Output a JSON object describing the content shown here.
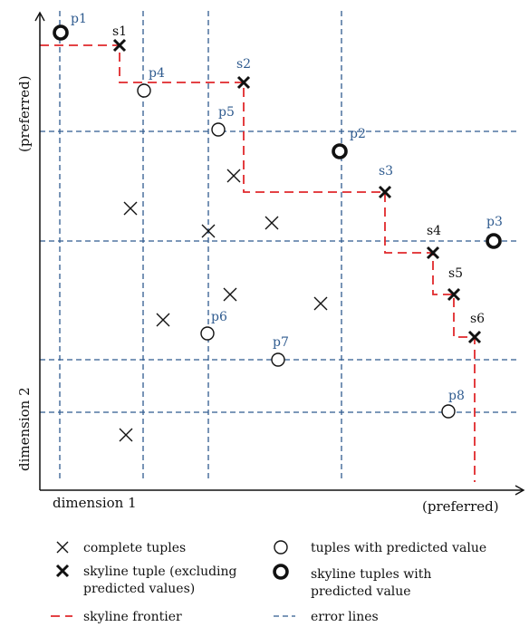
{
  "colors": {
    "axis": "#111111",
    "error_line": "#2f5b8f",
    "frontier": "#e0282b",
    "point_label": "#2f5b8f",
    "skyline_label": "#111111"
  },
  "axes": {
    "x_label": "dimension 1",
    "x_preferred": "(preferred)",
    "y_label": "dimension 2",
    "y_preferred": "(preferred)"
  },
  "points": [
    {
      "id": "p1",
      "label": "p1",
      "kind": "skyline_predicted"
    },
    {
      "id": "p2",
      "label": "p2",
      "kind": "skyline_predicted"
    },
    {
      "id": "p3",
      "label": "p3",
      "kind": "skyline_predicted"
    },
    {
      "id": "p4",
      "label": "p4",
      "kind": "predicted"
    },
    {
      "id": "p5",
      "label": "p5",
      "kind": "predicted"
    },
    {
      "id": "p6",
      "label": "p6",
      "kind": "predicted"
    },
    {
      "id": "p7",
      "label": "p7",
      "kind": "predicted"
    },
    {
      "id": "p8",
      "label": "p8",
      "kind": "predicted"
    },
    {
      "id": "s1",
      "label": "s1",
      "kind": "skyline"
    },
    {
      "id": "s2",
      "label": "s2",
      "kind": "skyline"
    },
    {
      "id": "s3",
      "label": "s3",
      "kind": "skyline"
    },
    {
      "id": "s4",
      "label": "s4",
      "kind": "skyline"
    },
    {
      "id": "s5",
      "label": "s5",
      "kind": "skyline"
    },
    {
      "id": "s6",
      "label": "s6",
      "kind": "skyline"
    }
  ],
  "legend": {
    "complete": "complete tuples",
    "predicted": "tuples with predicted value",
    "skyline_line1": "skyline tuple (excluding",
    "skyline_line2": "predicted values)",
    "skyline_pred_line1": "skyline tuples with",
    "skyline_pred_line2": "predicted value",
    "frontier": "skyline frontier",
    "error": "error lines"
  }
}
